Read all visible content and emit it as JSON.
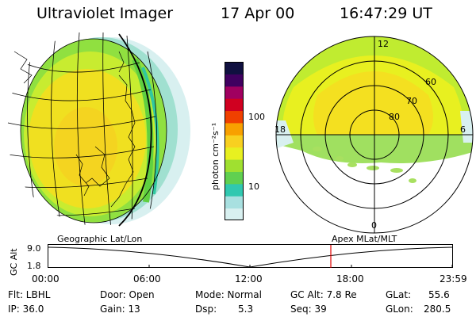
{
  "header": {
    "title": "Ultraviolet Imager",
    "date": "17 Apr 00",
    "time": "16:47:29 UT"
  },
  "colorbar": {
    "unit_label": "photon cm⁻²s⁻¹",
    "ticks": [
      "100",
      "10"
    ],
    "colors": [
      "#d8f0f0",
      "#a8e0e0",
      "#30c8b0",
      "#60d050",
      "#a0e030",
      "#e8f020",
      "#f8d020",
      "#f8a000",
      "#f04000",
      "#d00020",
      "#a00060",
      "#400060",
      "#101040"
    ]
  },
  "polar_plot": {
    "mlt_labels": {
      "top": "12",
      "left": "18",
      "right": "6",
      "bottom": "0"
    },
    "lat_labels": [
      "60",
      "70",
      "80"
    ]
  },
  "timeline": {
    "left_label": "Geographic Lat/Lon",
    "right_label": "Apex MLat/MLT",
    "axis_title": "GC Alt",
    "y_ticks": [
      "9.0",
      "1.8"
    ],
    "x_ticks": [
      "00:00",
      "06:00",
      "12:00",
      "18:00",
      "23:59"
    ],
    "marker_color": "#e00000"
  },
  "info": {
    "filter": "Flt: LBHL",
    "ip": "IP: 36.0",
    "door": "Door: Open",
    "gain": "Gain: 13",
    "mode": "Mode: Normal",
    "dsp_label": "Dsp:",
    "dsp_value": "5.3",
    "gc_alt": "GC Alt: 7.8 Re",
    "seq": "Seq: 39",
    "glat_label": "GLat:",
    "glat_value": "55.6",
    "glon_label": "GLon:",
    "glon_value": "280.5"
  }
}
